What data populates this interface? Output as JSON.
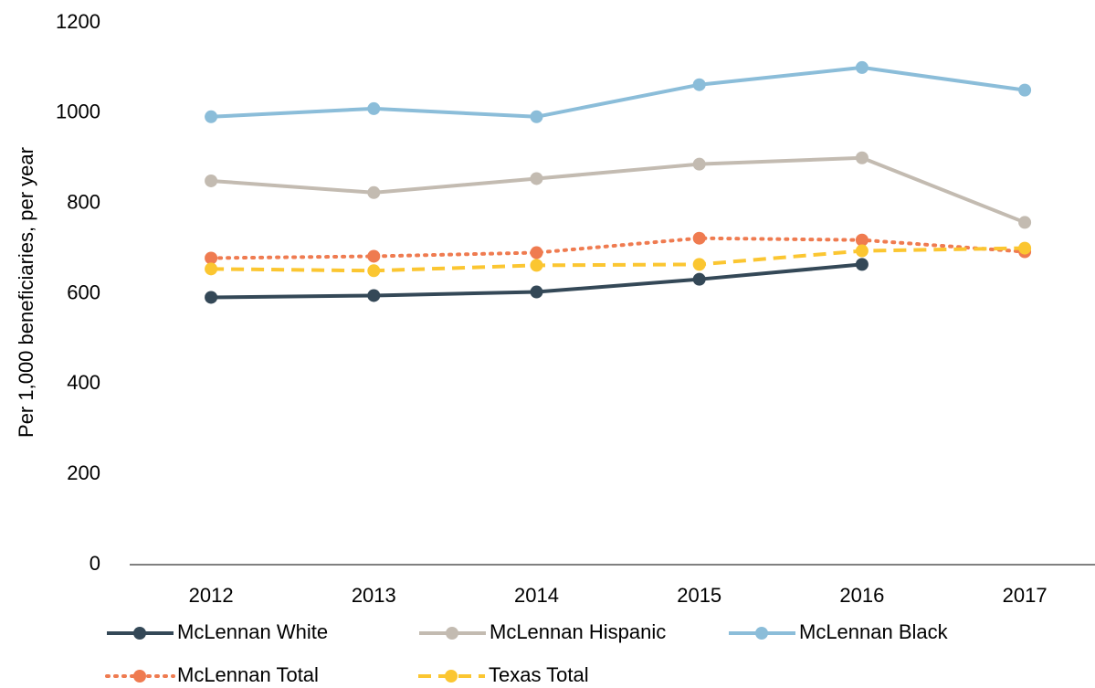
{
  "chart_data": {
    "type": "line",
    "y_label": "Per 1,000 beneficiaries, per year",
    "categories": [
      "2012",
      "2013",
      "2014",
      "2015",
      "2016",
      "2017"
    ],
    "series": [
      {
        "name": "McLennan White",
        "color": "#344857",
        "style": "solid",
        "values": [
          592,
          596,
          604,
          632,
          665,
          null
        ]
      },
      {
        "name": "McLennan Hispanic",
        "color": "#c3bbb1",
        "style": "solid",
        "values": [
          850,
          824,
          855,
          887,
          901,
          758
        ]
      },
      {
        "name": "McLennan Black",
        "color": "#8bbdd9",
        "style": "solid",
        "values": [
          992,
          1010,
          992,
          1063,
          1101,
          1051
        ]
      },
      {
        "name": "McLennan Total",
        "color": "#ef7b50",
        "style": "dotted",
        "values": [
          679,
          683,
          691,
          723,
          719,
          693
        ]
      },
      {
        "name": "Texas Total",
        "color": "#fbc631",
        "style": "dashed",
        "values": [
          655,
          651,
          663,
          665,
          695,
          701
        ]
      }
    ],
    "ylim": [
      0,
      1200
    ],
    "yticks": [
      0,
      200,
      400,
      600,
      800,
      1000,
      1200
    ],
    "legend": "bottom"
  }
}
